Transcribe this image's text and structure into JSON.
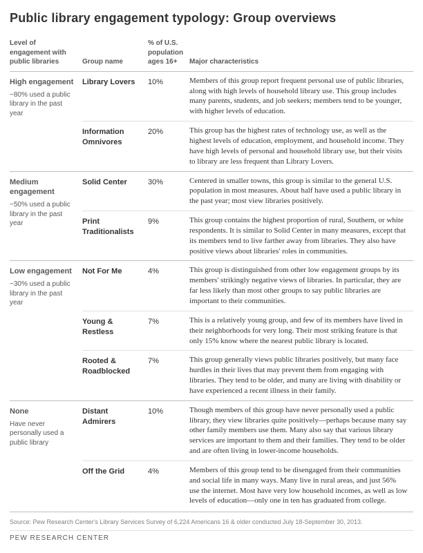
{
  "title": "Public library engagement typology: Group overviews",
  "columns": {
    "level": "Level of engagement with public libraries",
    "name": "Group name",
    "pct": "% of U.S. population ages 16+",
    "desc": "Major characteristics"
  },
  "levels": [
    {
      "title": "High engagement",
      "note": "~80% used a public library in the past year",
      "groups": [
        {
          "name": "Library Lovers",
          "pct": "10%",
          "desc": "Members of this group report frequent personal use of public libraries, along with high levels of household library use. This group includes many parents, students, and job seekers; members tend to be younger, with higher levels of education."
        },
        {
          "name": "Information Omnivores",
          "pct": "20%",
          "desc": "This group has the highest rates of technology use, as well as the highest levels of education, employment, and household income. They have high levels of personal and household library use, but their visits to library are less frequent than Library Lovers."
        }
      ]
    },
    {
      "title": "Medium engagement",
      "note": "~50% used a public library in the past year",
      "groups": [
        {
          "name": "Solid Center",
          "pct": "30%",
          "desc": "Centered in smaller towns, this group is similar to the general U.S. population in most measures. About half have used a public library in the past year; most view libraries positively."
        },
        {
          "name": "Print Traditionalists",
          "pct": "9%",
          "desc": "This group contains the highest proportion of rural, Southern, or white respondents. It is similar to Solid Center in many measures, except that its members tend to live farther away from libraries. They also have positive views about libraries' roles in communities."
        }
      ]
    },
    {
      "title": "Low engagement",
      "note": "~30% used a public library in the past year",
      "groups": [
        {
          "name": "Not For Me",
          "pct": "4%",
          "desc": "This group is distinguished from other low engagement groups by its members' strikingly negative views of libraries. In particular, they are far less likely than most other groups to say public libraries are important to their communities."
        },
        {
          "name": "Young & Restless",
          "pct": "7%",
          "desc": "This is a relatively young group, and few of its members have lived in their neighborhoods for very long. Their most striking feature is that only 15% know where the nearest public library is located."
        },
        {
          "name": "Rooted & Roadblocked",
          "pct": "7%",
          "desc": "This group generally views public libraries positively, but many face hurdles in their lives that may prevent them from engaging with libraries. They tend to be older, and many are living with disability or have experienced a recent illness in their family."
        }
      ]
    },
    {
      "title": "None",
      "note": "Have never personally used a public library",
      "groups": [
        {
          "name": "Distant Admirers",
          "pct": "10%",
          "desc": "Though members of this group have never personally used a public library, they view libraries quite positively—perhaps because many say other family members use them. Many also say that various library services are important to them and their families. They tend to be older and are often living in lower-income households."
        },
        {
          "name": "Off the Grid",
          "pct": "4%",
          "desc": "Members of this group tend to be disengaged from their communities and social life in many ways. Many live in rural areas, and just 56% use the internet. Most have very low household incomes, as well as low levels of education—only one in ten has graduated from college."
        }
      ]
    }
  ],
  "source": "Source: Pew Research Center's Library Services Survey of 6,224 Americans 16 & older conducted July 18-September 30, 2013.",
  "brand": "PEW RESEARCH CENTER"
}
